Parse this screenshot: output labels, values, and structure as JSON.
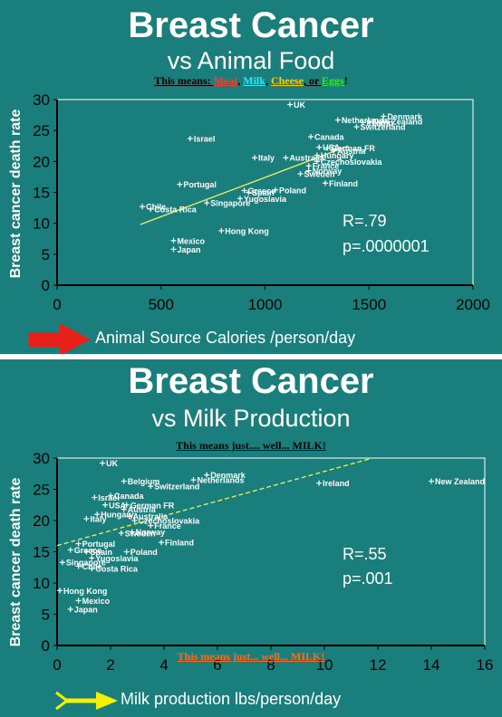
{
  "panel1": {
    "title": "Breast Cancer",
    "subtitle": "vs Animal Food",
    "means_prefix": "This means: ",
    "means_meat": "Meat",
    "means_milk": "Milk",
    "means_cheese": "Cheese",
    "means_or": ", or ",
    "means_eggs": "Eggs",
    "means_end": "!",
    "r_text": "R=.79",
    "p_text": "p=.0000001",
    "arrow_color": "#e8201a"
  },
  "panel2": {
    "title": "Breast Cancer",
    "subtitle": "vs Milk Production",
    "means_top": "This means just.... well... MILK!",
    "means_bottom": "This means just... well... MILK!",
    "r_text": "R=.55",
    "p_text": "p=.001",
    "arrow_color": "#f5f000"
  },
  "colors": {
    "background": "#1a7f7c",
    "meat": "#ff3b1f",
    "milk": "#33e6ff",
    "cheese": "#ffcc00",
    "eggs": "#33e633",
    "means_bottom": "#ff6a1a",
    "trend_line": "#f0f060"
  },
  "chart_data": [
    {
      "type": "scatter",
      "title": "Breast Cancer vs Animal Food",
      "xlabel": "Animal Source Calories /person/day",
      "ylabel": "Breast cancer death rate",
      "xlim": [
        0,
        2000
      ],
      "ylim": [
        0,
        30
      ],
      "xticks": [
        0,
        500,
        1000,
        1500,
        2000
      ],
      "yticks": [
        0,
        5,
        10,
        15,
        20,
        25,
        30
      ],
      "trend_line": [
        [
          400,
          9.8
        ],
        [
          1400,
          22.5
        ]
      ],
      "points": [
        {
          "label": "UK",
          "x": 1120,
          "y": 29.2
        },
        {
          "label": "Denmark",
          "x": 1570,
          "y": 27.3
        },
        {
          "label": "Netherlands",
          "x": 1350,
          "y": 26.7
        },
        {
          "label": "New Zealand",
          "x": 1500,
          "y": 26.5
        },
        {
          "label": "Ireland",
          "x": 1470,
          "y": 26.3
        },
        {
          "label": "Switzerland",
          "x": 1440,
          "y": 25.6
        },
        {
          "label": "Israel",
          "x": 640,
          "y": 23.7
        },
        {
          "label": "Canada",
          "x": 1220,
          "y": 24.0
        },
        {
          "label": "USA",
          "x": 1260,
          "y": 22.3
        },
        {
          "label": "German FR",
          "x": 1300,
          "y": 22.2
        },
        {
          "label": "Austria",
          "x": 1330,
          "y": 21.7
        },
        {
          "label": "Hungary",
          "x": 1250,
          "y": 21.0
        },
        {
          "label": "Italy",
          "x": 950,
          "y": 20.6
        },
        {
          "label": "Australia",
          "x": 1100,
          "y": 20.6
        },
        {
          "label": "Czechoslovakia",
          "x": 1250,
          "y": 20.0
        },
        {
          "label": "France",
          "x": 1210,
          "y": 19.3
        },
        {
          "label": "Norway",
          "x": 1210,
          "y": 18.5
        },
        {
          "label": "Sweden",
          "x": 1170,
          "y": 18.0
        },
        {
          "label": "Finland",
          "x": 1290,
          "y": 16.5
        },
        {
          "label": "Portugal",
          "x": 590,
          "y": 16.3
        },
        {
          "label": "Greece",
          "x": 900,
          "y": 15.3
        },
        {
          "label": "Spain",
          "x": 920,
          "y": 15.0
        },
        {
          "label": "Poland",
          "x": 1050,
          "y": 15.4
        },
        {
          "label": "Yugoslavia",
          "x": 880,
          "y": 14.0
        },
        {
          "label": "Singapore",
          "x": 720,
          "y": 13.3
        },
        {
          "label": "Chile",
          "x": 410,
          "y": 12.7
        },
        {
          "label": "Costa Rica",
          "x": 450,
          "y": 12.3
        },
        {
          "label": "Hong Kong",
          "x": 790,
          "y": 8.8
        },
        {
          "label": "Mexico",
          "x": 560,
          "y": 7.2
        },
        {
          "label": "Japan",
          "x": 560,
          "y": 5.8
        }
      ]
    },
    {
      "type": "scatter",
      "title": "Breast Cancer vs Milk Production",
      "xlabel": "Milk production lbs/person/day",
      "ylabel": "Breast cancer death rate",
      "xlim": [
        0,
        16
      ],
      "ylim": [
        0,
        30
      ],
      "xticks": [
        0,
        2,
        4,
        6,
        8,
        10,
        12,
        14,
        16
      ],
      "yticks": [
        0,
        5,
        10,
        15,
        20,
        25,
        30
      ],
      "trend_line": [
        [
          0,
          16
        ],
        [
          11.8,
          30
        ]
      ],
      "points": [
        {
          "label": "UK",
          "x": 1.7,
          "y": 29.2
        },
        {
          "label": "Denmark",
          "x": 5.6,
          "y": 27.3
        },
        {
          "label": "Netherlands",
          "x": 5.1,
          "y": 26.5
        },
        {
          "label": "Belgium",
          "x": 2.5,
          "y": 26.3
        },
        {
          "label": "Switzerland",
          "x": 3.5,
          "y": 25.5
        },
        {
          "label": "Ireland",
          "x": 9.8,
          "y": 26.0
        },
        {
          "label": "New Zealand",
          "x": 14.0,
          "y": 26.3
        },
        {
          "label": "Canada",
          "x": 2.0,
          "y": 24.0
        },
        {
          "label": "Israel",
          "x": 1.4,
          "y": 23.7
        },
        {
          "label": "USA",
          "x": 1.8,
          "y": 22.5
        },
        {
          "label": "German FR",
          "x": 2.6,
          "y": 22.5
        },
        {
          "label": "Austria",
          "x": 2.5,
          "y": 21.8
        },
        {
          "label": "Hungary",
          "x": 1.5,
          "y": 21.0
        },
        {
          "label": "Australia",
          "x": 2.7,
          "y": 20.7
        },
        {
          "label": "Italy",
          "x": 1.1,
          "y": 20.3
        },
        {
          "label": "Czechoslovakia",
          "x": 2.9,
          "y": 20.0
        },
        {
          "label": "France",
          "x": 3.5,
          "y": 19.2
        },
        {
          "label": "Norway",
          "x": 2.8,
          "y": 18.2
        },
        {
          "label": "Sweden",
          "x": 2.4,
          "y": 18.0
        },
        {
          "label": "Finland",
          "x": 3.9,
          "y": 16.5
        },
        {
          "label": "Portugal",
          "x": 0.8,
          "y": 16.3
        },
        {
          "label": "Greece",
          "x": 0.5,
          "y": 15.3
        },
        {
          "label": "Spain",
          "x": 1.1,
          "y": 15.0
        },
        {
          "label": "Poland",
          "x": 2.6,
          "y": 15.0
        },
        {
          "label": "Yugoslavia",
          "x": 1.3,
          "y": 14.0
        },
        {
          "label": "Singapore",
          "x": 0.2,
          "y": 13.3
        },
        {
          "label": "Chile",
          "x": 0.8,
          "y": 12.7
        },
        {
          "label": "Costa Rica",
          "x": 1.3,
          "y": 12.3
        },
        {
          "label": "Hong Kong",
          "x": 0.1,
          "y": 8.8
        },
        {
          "label": "Mexico",
          "x": 0.8,
          "y": 7.2
        },
        {
          "label": "Japan",
          "x": 0.5,
          "y": 5.8
        }
      ]
    }
  ]
}
